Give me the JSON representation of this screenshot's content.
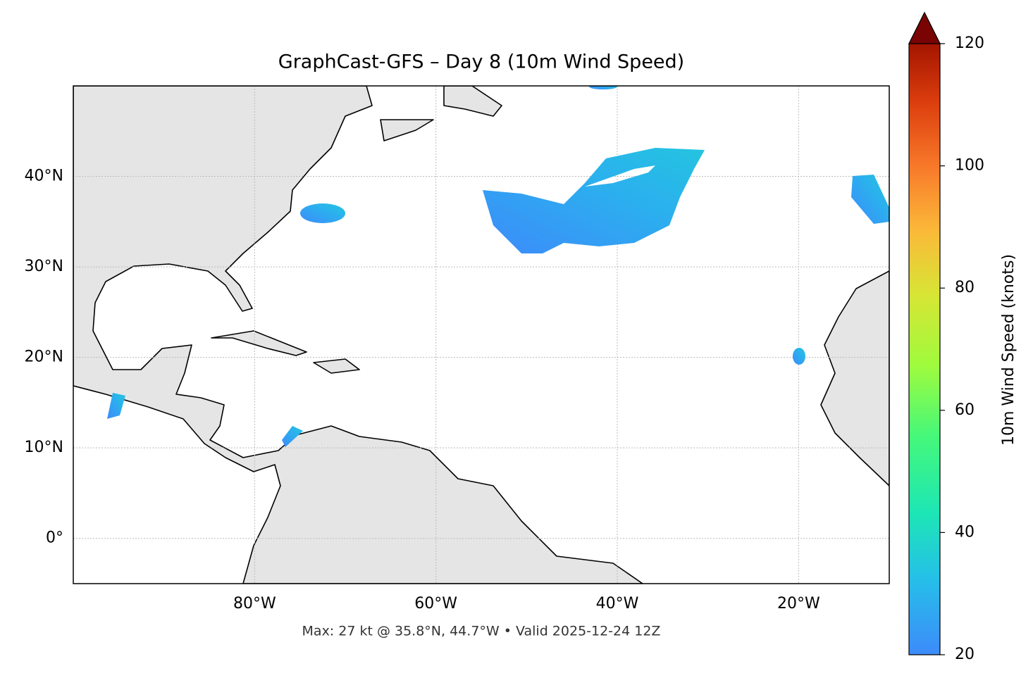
{
  "chart_data": {
    "type": "map",
    "title": "GraphCast-GFS – Day 8 (10m Wind Speed)",
    "footer": "Max: 27 kt @ 35.8°N, 44.7°W • Valid 2025-12-24 12Z",
    "xlim": [
      -100,
      -10
    ],
    "ylim": [
      -5,
      50
    ],
    "xticks": [
      {
        "value": -80,
        "label": "80°W"
      },
      {
        "value": -60,
        "label": "60°W"
      },
      {
        "value": -40,
        "label": "40°W"
      },
      {
        "value": -20,
        "label": "20°W"
      }
    ],
    "yticks": [
      {
        "value": 0,
        "label": "0°"
      },
      {
        "value": 10,
        "label": "10°N"
      },
      {
        "value": 20,
        "label": "20°N"
      },
      {
        "value": 30,
        "label": "30°N"
      },
      {
        "value": 40,
        "label": "40°N"
      }
    ],
    "grid": true,
    "colorbar": {
      "label": "10m Wind Speed (knots)",
      "lim": [
        20,
        120
      ],
      "ticks": [
        20,
        40,
        60,
        80,
        100,
        120
      ]
    }
  }
}
